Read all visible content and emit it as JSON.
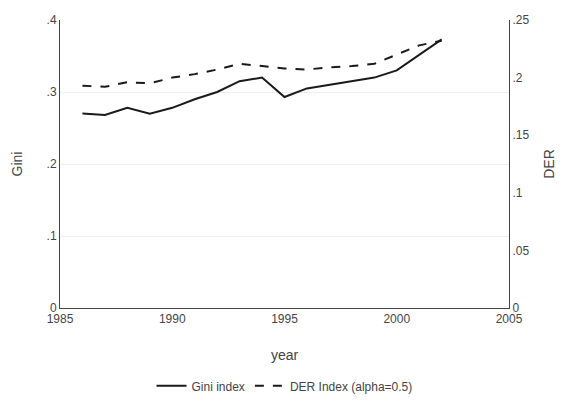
{
  "chart_data": {
    "type": "line",
    "x": [
      1986,
      1987,
      1988,
      1989,
      1990,
      1991,
      1992,
      1993,
      1994,
      1995,
      1996,
      1997,
      1998,
      1999,
      2000,
      2001,
      2002
    ],
    "series": [
      {
        "name": "Gini index",
        "color": "#1a1a1a",
        "line_style": "solid",
        "values": [
          0.27,
          0.268,
          0.278,
          0.27,
          0.278,
          0.29,
          0.3,
          0.315,
          0.32,
          0.293,
          0.305,
          0.31,
          0.315,
          0.32,
          0.33,
          0.352,
          0.373
        ]
      },
      {
        "name": "DER Index (alpha=0.5)",
        "color": "#1a1a1a",
        "line_style": "dashed",
        "axis": "y2",
        "values": [
          0.193,
          0.192,
          0.196,
          0.195,
          0.2,
          0.203,
          0.207,
          0.212,
          0.21,
          0.208,
          0.207,
          0.209,
          0.21,
          0.212,
          0.22,
          0.228,
          0.232
        ]
      }
    ],
    "xlabel": "year",
    "ylabel": "Gini",
    "y2label": "DER",
    "xlim": [
      1985,
      2005
    ],
    "xticks": [
      1985,
      1990,
      1995,
      2000,
      2005
    ],
    "ylim": [
      0,
      0.4
    ],
    "yticks": [
      0,
      {
        "value": 0.1,
        "label": ".1"
      },
      {
        "value": 0.2,
        "label": ".2"
      },
      {
        "value": 0.3,
        "label": ".3"
      },
      {
        "value": 0.4,
        "label": ".4"
      }
    ],
    "y2lim": [
      0,
      0.25
    ],
    "y2ticks": [
      0,
      {
        "value": 0.05,
        "label": ".05"
      },
      {
        "value": 0.1,
        "label": ".1"
      },
      {
        "value": 0.15,
        "label": ".15"
      },
      {
        "value": 0.2,
        "label": ".2"
      },
      {
        "value": 0.25,
        "label": ".25"
      }
    ],
    "grid": "y",
    "legend": "bottom"
  }
}
